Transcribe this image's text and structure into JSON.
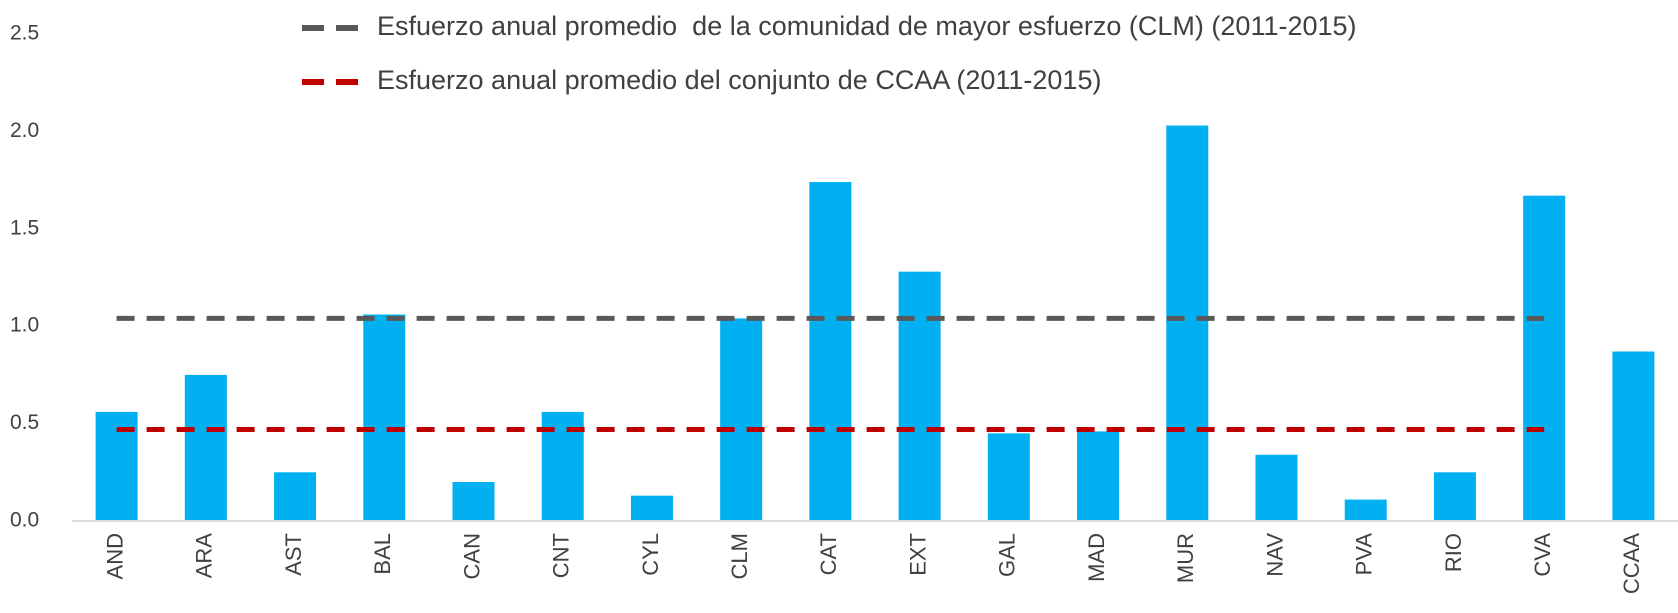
{
  "chart_data": {
    "type": "bar",
    "categories": [
      "AND",
      "ARA",
      "AST",
      "BAL",
      "CAN",
      "CNT",
      "CYL",
      "CLM",
      "CAT",
      "EXT",
      "GAL",
      "MAD",
      "MUR",
      "NAV",
      "PVA",
      "RIO",
      "CVA",
      "CCAA"
    ],
    "values": [
      0.56,
      0.75,
      0.25,
      1.06,
      0.2,
      0.56,
      0.13,
      1.04,
      1.74,
      1.28,
      0.45,
      0.46,
      2.03,
      0.34,
      0.11,
      0.25,
      1.67,
      0.87
    ],
    "color": "#00b0f0",
    "series": [
      {
        "name": "Esfuerzo anual promedio  de la comunidad de mayor esfuerzo (CLM) (2011-2015)",
        "color": "#595959",
        "type": "line",
        "values": [
          1.04,
          1.04,
          1.04,
          1.04,
          1.04,
          1.04,
          1.04,
          1.04,
          1.04,
          1.04,
          1.04,
          1.04,
          1.04,
          1.04,
          1.04,
          1.04,
          1.04,
          null
        ]
      },
      {
        "name": "Esfuerzo anual promedio del conjunto de CCAA (2011-2015)",
        "color": "#c00000",
        "type": "line",
        "values": [
          0.47,
          0.47,
          0.47,
          0.47,
          0.47,
          0.47,
          0.47,
          0.47,
          0.47,
          0.47,
          0.47,
          0.47,
          0.47,
          0.47,
          0.47,
          0.47,
          0.47,
          null
        ]
      }
    ],
    "ylim": [
      0,
      2.5
    ],
    "yticks": [
      {
        "value": 0,
        "label": "0.0"
      },
      0.5,
      {
        "value": 1,
        "label": "1.0"
      },
      1.5,
      {
        "value": 2,
        "label": "2.0"
      },
      2.5
    ],
    "grid": false
  }
}
